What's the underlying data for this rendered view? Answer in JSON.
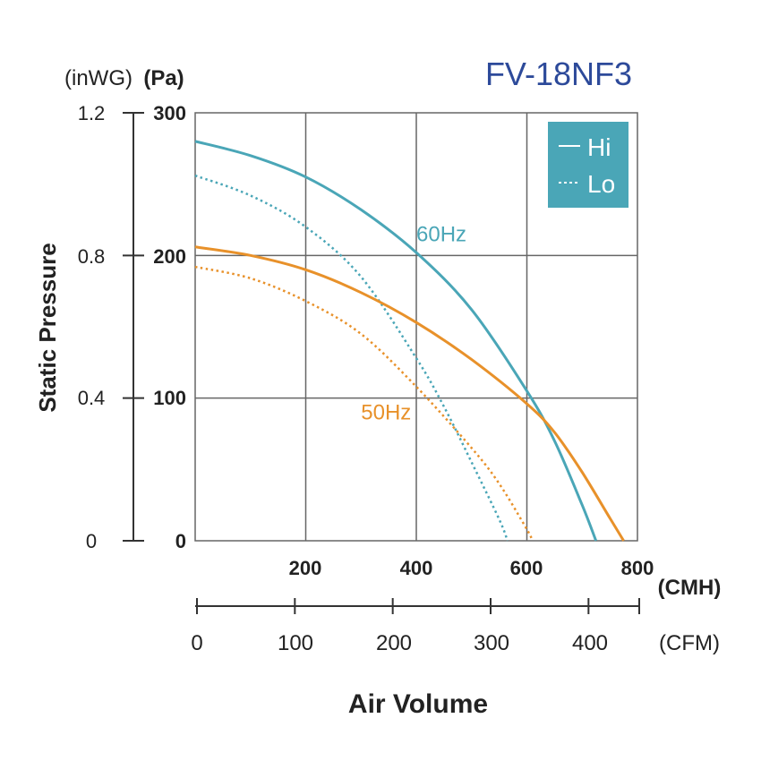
{
  "chart_data": {
    "type": "line",
    "title": "FV-18NF3",
    "xlabel": "Air Volume",
    "ylabel": "Static Pressure",
    "x_primary": {
      "unit": "(CMH)",
      "range": [
        0,
        800
      ],
      "ticks": [
        "200",
        "400",
        "600",
        "800"
      ]
    },
    "x_secondary": {
      "unit": "(CFM)",
      "range": [
        0,
        450
      ],
      "ticks": [
        "0",
        "100",
        "200",
        "300",
        "400"
      ]
    },
    "y_primary": {
      "unit": "(Pa)",
      "range": [
        0,
        300
      ],
      "ticks": [
        "0",
        "100",
        "200",
        "300"
      ]
    },
    "y_secondary": {
      "unit": "(inWG)",
      "range": [
        0,
        1.2
      ],
      "ticks": [
        "0",
        "0.4",
        "0.8",
        "1.2"
      ]
    },
    "grid": true,
    "legend": {
      "position": "top-right",
      "background": "#4aa6b7",
      "entries": [
        {
          "label": "Hi",
          "style": "solid"
        },
        {
          "label": "Lo",
          "style": "dotted"
        }
      ]
    },
    "annotations": [
      {
        "text": "60Hz",
        "x": 400,
        "y": 210,
        "color": "#4aa6b7"
      },
      {
        "text": "50Hz",
        "x": 300,
        "y": 85,
        "color": "#e8912a"
      }
    ],
    "series": [
      {
        "group": "60Hz",
        "mode": "Hi",
        "style": "solid",
        "color": "#4aa6b7",
        "points": [
          [
            0,
            280
          ],
          [
            100,
            270
          ],
          [
            200,
            255
          ],
          [
            300,
            232
          ],
          [
            400,
            202
          ],
          [
            500,
            162
          ],
          [
            600,
            105
          ],
          [
            650,
            70
          ],
          [
            700,
            25
          ],
          [
            725,
            0
          ]
        ]
      },
      {
        "group": "60Hz",
        "mode": "Lo",
        "style": "dotted",
        "color": "#4aa6b7",
        "points": [
          [
            0,
            256
          ],
          [
            100,
            242
          ],
          [
            200,
            220
          ],
          [
            300,
            185
          ],
          [
            400,
            128
          ],
          [
            450,
            94
          ],
          [
            500,
            55
          ],
          [
            550,
            15
          ],
          [
            565,
            0
          ]
        ]
      },
      {
        "group": "50Hz",
        "mode": "Hi",
        "style": "solid",
        "color": "#e8912a",
        "points": [
          [
            0,
            206
          ],
          [
            100,
            200
          ],
          [
            200,
            190
          ],
          [
            300,
            174
          ],
          [
            400,
            153
          ],
          [
            500,
            127
          ],
          [
            600,
            96
          ],
          [
            650,
            76
          ],
          [
            700,
            48
          ],
          [
            750,
            16
          ],
          [
            775,
            0
          ]
        ]
      },
      {
        "group": "50Hz",
        "mode": "Lo",
        "style": "dotted",
        "color": "#e8912a",
        "points": [
          [
            0,
            192
          ],
          [
            100,
            184
          ],
          [
            200,
            168
          ],
          [
            300,
            145
          ],
          [
            400,
            108
          ],
          [
            500,
            65
          ],
          [
            550,
            40
          ],
          [
            600,
            8
          ],
          [
            610,
            0
          ]
        ]
      }
    ]
  }
}
